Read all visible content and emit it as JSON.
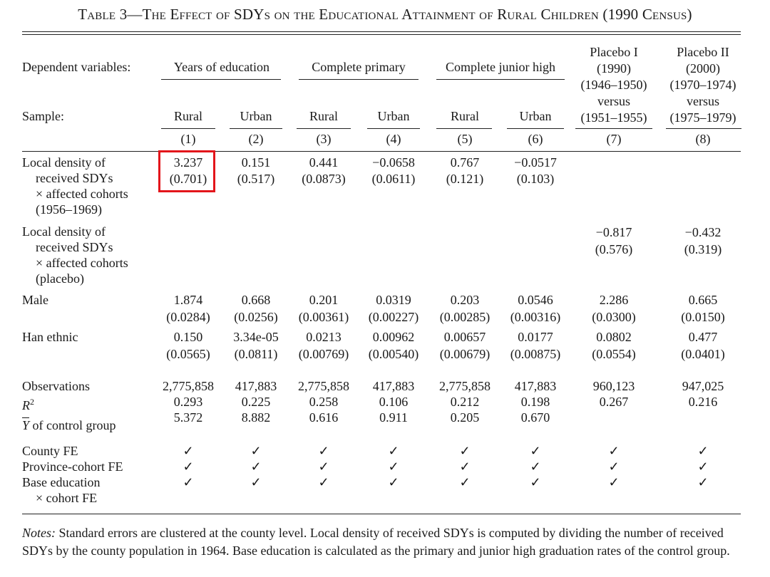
{
  "title": "Table 3—The Effect of SDYs on the Educational Attainment of Rural Children (1990 Census)",
  "header": {
    "dependent_variables_label": "Dependent variables:",
    "sample_label": "Sample:",
    "groups": [
      "Years of education",
      "Complete primary",
      "Complete junior high"
    ],
    "placebo_1": [
      "Placebo I",
      "(1990)",
      "(1946–1950)",
      "versus",
      "(1951–1955)"
    ],
    "placebo_2": [
      "Placebo II",
      "(2000)",
      "(1970–1974)",
      "versus",
      "(1975–1979)"
    ],
    "samples": [
      "Rural",
      "Urban",
      "Rural",
      "Urban",
      "Rural",
      "Urban"
    ],
    "column_numbers": [
      "(1)",
      "(2)",
      "(3)",
      "(4)",
      "(5)",
      "(6)",
      "(7)",
      "(8)"
    ]
  },
  "rows": {
    "local_density": {
      "label_lines": [
        "Local density of",
        "received SDYs",
        "× affected cohorts",
        "(1956–1969)"
      ],
      "coef": [
        "3.237",
        "0.151",
        "0.441",
        "−0.0658",
        "0.767",
        "−0.0517",
        "",
        ""
      ],
      "se": [
        "(0.701)",
        "(0.517)",
        "(0.0873)",
        "(0.0611)",
        "(0.121)",
        "(0.103)",
        "",
        ""
      ]
    },
    "local_density_placebo": {
      "label_lines": [
        "Local density of",
        "received SDYs",
        "× affected cohorts",
        "(placebo)"
      ],
      "coef": [
        "",
        "",
        "",
        "",
        "",
        "",
        "−0.817",
        "−0.432"
      ],
      "se": [
        "",
        "",
        "",
        "",
        "",
        "",
        "(0.576)",
        "(0.319)"
      ]
    },
    "male": {
      "label": "Male",
      "coef": [
        "1.874",
        "0.668",
        "0.201",
        "0.0319",
        "0.203",
        "0.0546",
        "2.286",
        "0.665"
      ],
      "se": [
        "(0.0284)",
        "(0.0256)",
        "(0.00361)",
        "(0.00227)",
        "(0.00285)",
        "(0.00316)",
        "(0.0300)",
        "(0.0150)"
      ]
    },
    "han": {
      "label": "Han ethnic",
      "coef": [
        "0.150",
        "3.34e-05",
        "0.0213",
        "0.00962",
        "0.00657",
        "0.0177",
        "0.0802",
        "0.477"
      ],
      "se": [
        "(0.0565)",
        "(0.0811)",
        "(0.00769)",
        "(0.00540)",
        "(0.00679)",
        "(0.00875)",
        "(0.0554)",
        "(0.0401)"
      ]
    },
    "observations": {
      "label": "Observations",
      "values": [
        "2,775,858",
        "417,883",
        "2,775,858",
        "417,883",
        "2,775,858",
        "417,883",
        "960,123",
        "947,025"
      ]
    },
    "r2": {
      "label_base": "R",
      "label_sup": "2",
      "values": [
        "0.293",
        "0.225",
        "0.258",
        "0.106",
        "0.212",
        "0.198",
        "0.267",
        "0.216"
      ]
    },
    "ybar": {
      "label_sym": "Y",
      "label_rest": " of control group",
      "values": [
        "5.372",
        "8.882",
        "0.616",
        "0.911",
        "0.205",
        "0.670",
        "",
        ""
      ]
    },
    "fixed_effects": [
      {
        "label_lines": [
          "County FE"
        ],
        "marks": [
          "✓",
          "✓",
          "✓",
          "✓",
          "✓",
          "✓",
          "✓",
          "✓"
        ]
      },
      {
        "label_lines": [
          "Province-cohort FE"
        ],
        "marks": [
          "✓",
          "✓",
          "✓",
          "✓",
          "✓",
          "✓",
          "✓",
          "✓"
        ]
      },
      {
        "label_lines": [
          "Base education",
          "× cohort FE"
        ],
        "marks": [
          "✓",
          "✓",
          "✓",
          "✓",
          "✓",
          "✓",
          "✓",
          "✓"
        ]
      }
    ]
  },
  "notes": {
    "prefix": "Notes:",
    "text": " Standard errors are clustered at the county level. Local density of received SDYs is computed by dividing the number of received SDYs by the county population in 1964. Base education is calculated as the primary and junior high graduation rates of the control group."
  },
  "colors": {
    "highlight": "#e3151b",
    "text": "#1a1a1a"
  }
}
